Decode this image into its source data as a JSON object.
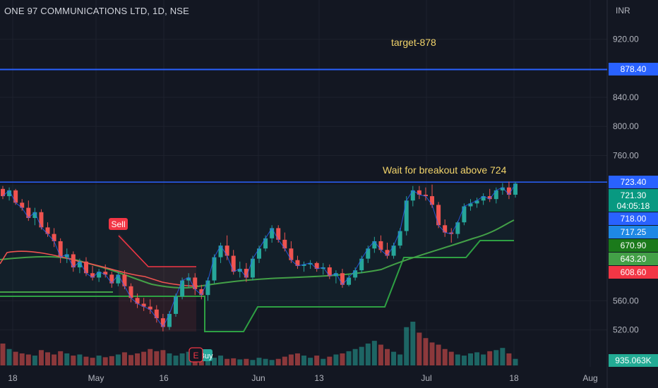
{
  "header": {
    "title": "ONE 97 COMMUNICATIONS LTD, 1D, NSE",
    "currency": "INR"
  },
  "annotations": {
    "target": "target-878",
    "breakout": "Wait for breakout above 724"
  },
  "price_labels": [
    {
      "text": "878.40",
      "value": 878.4,
      "color": "#2962ff"
    },
    {
      "text": "723.40",
      "value": 723.4,
      "color": "#2962ff"
    },
    {
      "text": "721.30",
      "value": 721.3,
      "sub": "04:05:18",
      "color": "#089981"
    },
    {
      "text": "718.00",
      "value": 718.0,
      "color": "#2962ff"
    },
    {
      "text": "717.25",
      "value": 717.25,
      "color": "#1e88e5"
    },
    {
      "text": "670.90",
      "value": 670.9,
      "color": "#1b7a1b"
    },
    {
      "text": "643.20",
      "value": 643.2,
      "color": "#43a047"
    },
    {
      "text": "608.60",
      "value": 608.6,
      "color": "#f23645"
    }
  ],
  "volume_label": "935.063K",
  "signals": {
    "sell": "Sell",
    "buy": "Buy",
    "earnings": "E"
  },
  "colors": {
    "up": "#26a69a",
    "down": "#ef5350",
    "hline": "#2962ff",
    "bg": "#131722"
  },
  "chart_data": {
    "type": "candlestick",
    "y_axis": {
      "ticks": [
        920,
        840,
        800,
        760,
        560,
        520
      ],
      "tick_labels": [
        "920.00",
        "840.00",
        "800.00",
        "760.00",
        "560.00",
        "520.00"
      ],
      "partial_tick_label": "600.00"
    },
    "x_axis": {
      "labels": [
        "18",
        "May",
        "16",
        "Jun",
        "13",
        "Jul",
        "18",
        "Aug"
      ]
    },
    "horizontal_lines": [
      878.4,
      723.4
    ],
    "candles": [
      [
        714,
        718,
        700,
        704
      ],
      [
        704,
        716,
        698,
        712
      ],
      [
        712,
        714,
        692,
        695
      ],
      [
        695,
        700,
        684,
        688
      ],
      [
        688,
        698,
        670,
        674
      ],
      [
        674,
        688,
        664,
        682
      ],
      [
        682,
        686,
        658,
        661
      ],
      [
        661,
        668,
        648,
        652
      ],
      [
        652,
        660,
        634,
        642
      ],
      [
        642,
        646,
        612,
        620
      ],
      [
        620,
        632,
        612,
        624
      ],
      [
        624,
        628,
        600,
        606
      ],
      [
        606,
        618,
        598,
        614
      ],
      [
        614,
        620,
        594,
        598
      ],
      [
        598,
        608,
        588,
        592
      ],
      [
        592,
        604,
        586,
        600
      ],
      [
        600,
        610,
        592,
        596
      ],
      [
        596,
        600,
        578,
        584
      ],
      [
        584,
        600,
        580,
        596
      ],
      [
        596,
        602,
        576,
        580
      ],
      [
        580,
        584,
        558,
        564
      ],
      [
        564,
        570,
        550,
        556
      ],
      [
        556,
        564,
        546,
        552
      ],
      [
        552,
        562,
        542,
        548
      ],
      [
        548,
        554,
        530,
        536
      ],
      [
        536,
        542,
        518,
        524
      ],
      [
        524,
        546,
        520,
        542
      ],
      [
        542,
        570,
        538,
        566
      ],
      [
        566,
        592,
        562,
        588
      ],
      [
        588,
        598,
        578,
        592
      ],
      [
        592,
        598,
        568,
        576
      ],
      [
        576,
        582,
        562,
        568
      ],
      [
        568,
        592,
        560,
        588
      ],
      [
        588,
        624,
        584,
        620
      ],
      [
        620,
        640,
        612,
        636
      ],
      [
        636,
        650,
        616,
        622
      ],
      [
        622,
        630,
        596,
        600
      ],
      [
        600,
        614,
        592,
        604
      ],
      [
        604,
        612,
        586,
        592
      ],
      [
        592,
        622,
        588,
        618
      ],
      [
        618,
        636,
        612,
        632
      ],
      [
        632,
        650,
        628,
        646
      ],
      [
        646,
        664,
        640,
        660
      ],
      [
        660,
        664,
        640,
        644
      ],
      [
        644,
        654,
        628,
        632
      ],
      [
        632,
        642,
        612,
        616
      ],
      [
        616,
        622,
        604,
        608
      ],
      [
        608,
        614,
        600,
        610
      ],
      [
        610,
        616,
        604,
        612
      ],
      [
        612,
        614,
        600,
        604
      ],
      [
        604,
        612,
        596,
        606
      ],
      [
        606,
        610,
        590,
        594
      ],
      [
        594,
        602,
        584,
        598
      ],
      [
        598,
        604,
        578,
        582
      ],
      [
        582,
        596,
        580,
        592
      ],
      [
        592,
        606,
        588,
        602
      ],
      [
        602,
        622,
        598,
        618
      ],
      [
        618,
        636,
        612,
        632
      ],
      [
        632,
        648,
        626,
        642
      ],
      [
        642,
        650,
        626,
        630
      ],
      [
        630,
        640,
        618,
        622
      ],
      [
        622,
        640,
        618,
        636
      ],
      [
        636,
        660,
        632,
        656
      ],
      [
        656,
        704,
        650,
        698
      ],
      [
        698,
        718,
        690,
        712
      ],
      [
        712,
        718,
        700,
        706
      ],
      [
        706,
        716,
        698,
        704
      ],
      [
        704,
        720,
        688,
        692
      ],
      [
        692,
        696,
        660,
        664
      ],
      [
        664,
        672,
        648,
        654
      ],
      [
        654,
        660,
        640,
        652
      ],
      [
        652,
        670,
        646,
        668
      ],
      [
        668,
        694,
        664,
        690
      ],
      [
        690,
        700,
        684,
        694
      ],
      [
        694,
        702,
        688,
        698
      ],
      [
        698,
        708,
        692,
        704
      ],
      [
        704,
        714,
        696,
        700
      ],
      [
        700,
        716,
        694,
        712
      ],
      [
        712,
        722,
        706,
        716
      ],
      [
        716,
        724,
        700,
        706
      ],
      [
        706,
        724,
        702,
        721.3
      ]
    ],
    "volume": [
      40,
      30,
      25,
      22,
      20,
      18,
      28,
      24,
      20,
      26,
      22,
      18,
      20,
      16,
      14,
      18,
      15,
      17,
      20,
      24,
      19,
      22,
      25,
      30,
      26,
      28,
      22,
      18,
      22,
      25,
      20,
      16,
      15,
      14,
      18,
      12,
      13,
      11,
      12,
      10,
      14,
      12,
      10,
      12,
      16,
      20,
      22,
      18,
      14,
      18,
      12,
      16,
      20,
      22,
      26,
      30,
      34,
      40,
      45,
      38,
      30,
      25,
      20,
      70,
      80,
      60,
      50,
      42,
      38,
      30,
      25,
      20,
      18,
      22,
      24,
      20,
      26,
      28,
      32,
      22,
      12
    ]
  }
}
